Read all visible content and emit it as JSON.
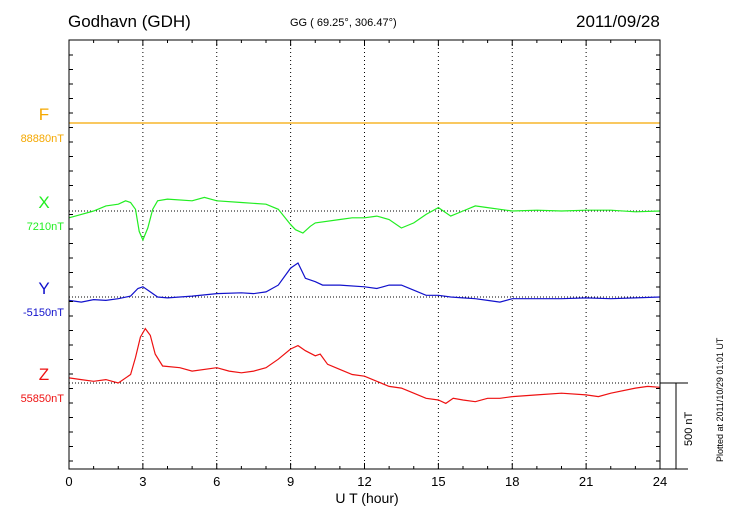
{
  "header": {
    "station": "Godhavn (GDH)",
    "coords": "GG ( 69.25°, 306.47°)",
    "date": "2011/09/28"
  },
  "footer": {
    "plotted": "Plotted at 2011/10/29 01:01  UT"
  },
  "chart_data": {
    "type": "line",
    "xlabel": "U T (hour)",
    "xlim": [
      0,
      24
    ],
    "xticks": [
      0,
      3,
      6,
      9,
      12,
      15,
      18,
      21,
      24
    ],
    "scale_bar_label": "500 nT",
    "grid": "dotted vertical every 3 h; dotted horizontal baseline per component",
    "series": [
      {
        "name": "F",
        "baseline_label": "88880nT",
        "color": "#f5a800",
        "points": [
          [
            0,
            0
          ],
          [
            24,
            0
          ]
        ]
      },
      {
        "name": "X",
        "baseline_label": "7210nT",
        "color": "#22ee22",
        "points": [
          [
            0,
            -40
          ],
          [
            0.5,
            -20
          ],
          [
            1,
            0
          ],
          [
            1.5,
            30
          ],
          [
            2,
            40
          ],
          [
            2.3,
            60
          ],
          [
            2.5,
            50
          ],
          [
            2.7,
            10
          ],
          [
            2.85,
            -120
          ],
          [
            3,
            -170
          ],
          [
            3.2,
            -100
          ],
          [
            3.4,
            10
          ],
          [
            3.6,
            60
          ],
          [
            4,
            70
          ],
          [
            5,
            60
          ],
          [
            5.5,
            80
          ],
          [
            6,
            60
          ],
          [
            7,
            50
          ],
          [
            8,
            40
          ],
          [
            8.5,
            10
          ],
          [
            9,
            -80
          ],
          [
            9.2,
            -110
          ],
          [
            9.5,
            -130
          ],
          [
            9.8,
            -90
          ],
          [
            10,
            -70
          ],
          [
            11,
            -50
          ],
          [
            11.5,
            -40
          ],
          [
            12,
            -40
          ],
          [
            12.5,
            -30
          ],
          [
            13,
            -50
          ],
          [
            13.5,
            -100
          ],
          [
            14,
            -70
          ],
          [
            14.5,
            -20
          ],
          [
            15,
            20
          ],
          [
            15.5,
            -30
          ],
          [
            16,
            0
          ],
          [
            16.5,
            30
          ],
          [
            17,
            20
          ],
          [
            17.5,
            10
          ],
          [
            18,
            0
          ],
          [
            19,
            5
          ],
          [
            20,
            0
          ],
          [
            21,
            5
          ],
          [
            22,
            5
          ],
          [
            23,
            -5
          ],
          [
            24,
            0
          ]
        ]
      },
      {
        "name": "Y",
        "baseline_label": "-5150nT",
        "color": "#1111cc",
        "points": [
          [
            0,
            -20
          ],
          [
            0.5,
            -30
          ],
          [
            1,
            -15
          ],
          [
            1.5,
            -20
          ],
          [
            2,
            -10
          ],
          [
            2.5,
            5
          ],
          [
            2.8,
            50
          ],
          [
            3,
            60
          ],
          [
            3.3,
            30
          ],
          [
            3.6,
            0
          ],
          [
            4,
            -5
          ],
          [
            4.5,
            0
          ],
          [
            5,
            5
          ],
          [
            6,
            20
          ],
          [
            7,
            25
          ],
          [
            7.5,
            20
          ],
          [
            8,
            30
          ],
          [
            8.5,
            70
          ],
          [
            9,
            170
          ],
          [
            9.3,
            200
          ],
          [
            9.6,
            110
          ],
          [
            10,
            90
          ],
          [
            10.3,
            70
          ],
          [
            11,
            70
          ],
          [
            12,
            60
          ],
          [
            12.5,
            50
          ],
          [
            13,
            70
          ],
          [
            13.5,
            70
          ],
          [
            14,
            40
          ],
          [
            14.5,
            10
          ],
          [
            15,
            10
          ],
          [
            15.5,
            0
          ],
          [
            16,
            -5
          ],
          [
            16.5,
            -10
          ],
          [
            17,
            -20
          ],
          [
            17.5,
            -30
          ],
          [
            18,
            -10
          ],
          [
            19,
            -10
          ],
          [
            20,
            -10
          ],
          [
            21,
            -5
          ],
          [
            22,
            -10
          ],
          [
            23,
            -5
          ],
          [
            24,
            0
          ]
        ]
      },
      {
        "name": "Z",
        "baseline_label": "55850nT",
        "color": "#ee1111",
        "points": [
          [
            0,
            30
          ],
          [
            0.5,
            20
          ],
          [
            1,
            10
          ],
          [
            1.5,
            20
          ],
          [
            2,
            0
          ],
          [
            2.5,
            50
          ],
          [
            2.7,
            150
          ],
          [
            2.9,
            270
          ],
          [
            3.1,
            320
          ],
          [
            3.3,
            280
          ],
          [
            3.5,
            170
          ],
          [
            3.8,
            100
          ],
          [
            4.5,
            90
          ],
          [
            5,
            70
          ],
          [
            6,
            90
          ],
          [
            6.5,
            70
          ],
          [
            7,
            60
          ],
          [
            7.5,
            70
          ],
          [
            8,
            90
          ],
          [
            8.5,
            140
          ],
          [
            9,
            200
          ],
          [
            9.3,
            220
          ],
          [
            9.6,
            190
          ],
          [
            10,
            160
          ],
          [
            10.2,
            170
          ],
          [
            10.5,
            110
          ],
          [
            11,
            80
          ],
          [
            11.5,
            50
          ],
          [
            12,
            40
          ],
          [
            12.5,
            10
          ],
          [
            13,
            -20
          ],
          [
            13.5,
            -30
          ],
          [
            14,
            -60
          ],
          [
            14.5,
            -90
          ],
          [
            15,
            -100
          ],
          [
            15.3,
            -120
          ],
          [
            15.6,
            -90
          ],
          [
            16,
            -100
          ],
          [
            16.5,
            -110
          ],
          [
            17,
            -90
          ],
          [
            17.5,
            -90
          ],
          [
            18,
            -80
          ],
          [
            19,
            -70
          ],
          [
            20,
            -60
          ],
          [
            21,
            -70
          ],
          [
            21.5,
            -80
          ],
          [
            22,
            -60
          ],
          [
            23,
            -30
          ],
          [
            23.5,
            -20
          ],
          [
            24,
            -25
          ]
        ]
      }
    ]
  }
}
